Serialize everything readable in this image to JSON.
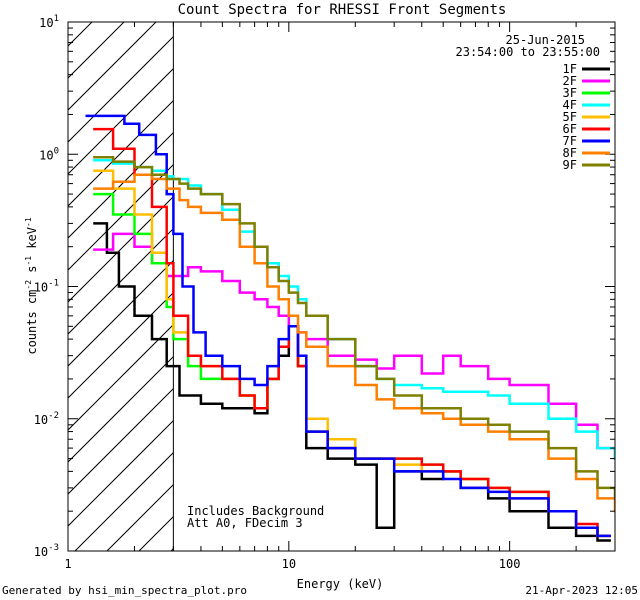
{
  "chart_data": {
    "type": "line",
    "title": "Count Spectra for RHESSI Front Segments",
    "xlabel": "Energy (keV)",
    "ylabel_parts": {
      "base": "counts cm",
      "e1": "-2",
      "s": " s",
      "e2": "-1",
      "kev": " keV",
      "e3": "-1"
    },
    "x_scale": "log",
    "y_scale": "log",
    "xlim": [
      1,
      300
    ],
    "ylim": [
      0.001,
      10
    ],
    "x_ticks": [
      {
        "v": 10,
        "label": "10"
      },
      {
        "v": 100,
        "label": "100"
      }
    ],
    "x_tick_left_label": "1",
    "y_ticks": [
      {
        "v": 0.001,
        "base": "10",
        "exp": "-3"
      },
      {
        "v": 0.01,
        "base": "10",
        "exp": "-2"
      },
      {
        "v": 0.1,
        "base": "10",
        "exp": "-1"
      },
      {
        "v": 1,
        "base": "10",
        "exp": "0"
      },
      {
        "v": 10,
        "base": "10",
        "exp": "1"
      }
    ],
    "attenuator_shade_max_kev": 3,
    "date_line": "25-Jun-2015",
    "time_line": "23:54:00 to 23:55:00",
    "annotation_lines": [
      "Includes Background",
      "Att A0, FDecim 3"
    ],
    "series": [
      {
        "name": "1F",
        "color": "#000000",
        "points": [
          [
            1.3,
            0.3
          ],
          [
            1.5,
            0.18
          ],
          [
            1.7,
            0.1
          ],
          [
            2,
            0.06
          ],
          [
            2.4,
            0.04
          ],
          [
            2.8,
            0.025
          ],
          [
            3.2,
            0.015
          ],
          [
            4,
            0.013
          ],
          [
            5,
            0.012
          ],
          [
            6,
            0.012
          ],
          [
            7,
            0.011
          ],
          [
            8,
            0.02
          ],
          [
            9,
            0.03
          ],
          [
            10,
            0.05
          ],
          [
            11,
            0.025
          ],
          [
            12,
            0.006
          ],
          [
            15,
            0.005
          ],
          [
            20,
            0.0045
          ],
          [
            25,
            0.0015
          ],
          [
            30,
            0.004
          ],
          [
            40,
            0.0035
          ],
          [
            50,
            0.004
          ],
          [
            60,
            0.003
          ],
          [
            80,
            0.0025
          ],
          [
            100,
            0.002
          ],
          [
            150,
            0.0015
          ],
          [
            200,
            0.0013
          ],
          [
            250,
            0.0012
          ]
        ]
      },
      {
        "name": "2F",
        "color": "#ff00ff",
        "points": [
          [
            1.3,
            0.19
          ],
          [
            1.6,
            0.25
          ],
          [
            2,
            0.2
          ],
          [
            2.4,
            0.15
          ],
          [
            2.8,
            0.12
          ],
          [
            3,
            0.12
          ],
          [
            3.5,
            0.14
          ],
          [
            4,
            0.13
          ],
          [
            5,
            0.11
          ],
          [
            6,
            0.09
          ],
          [
            7,
            0.08
          ],
          [
            8,
            0.07
          ],
          [
            9,
            0.06
          ],
          [
            10,
            0.05
          ],
          [
            11,
            0.045
          ],
          [
            12,
            0.04
          ],
          [
            15,
            0.03
          ],
          [
            20,
            0.028
          ],
          [
            25,
            0.024
          ],
          [
            30,
            0.03
          ],
          [
            40,
            0.022
          ],
          [
            50,
            0.03
          ],
          [
            60,
            0.025
          ],
          [
            80,
            0.02
          ],
          [
            100,
            0.018
          ],
          [
            150,
            0.013
          ],
          [
            200,
            0.009
          ],
          [
            250,
            0.006
          ],
          [
            300,
            0.005
          ]
        ]
      },
      {
        "name": "3F",
        "color": "#00ff00",
        "points": [
          [
            1.3,
            0.5
          ],
          [
            1.6,
            0.35
          ],
          [
            2,
            0.25
          ],
          [
            2.4,
            0.15
          ],
          [
            2.8,
            0.07
          ],
          [
            3,
            0.04
          ],
          [
            3.5,
            0.025
          ],
          [
            4,
            0.02
          ],
          [
            5,
            0.02
          ],
          [
            6,
            0.015
          ],
          [
            7,
            0.012
          ],
          [
            8,
            0.02
          ],
          [
            9,
            0.035
          ],
          [
            10,
            0.05
          ],
          [
            11,
            0.025
          ],
          [
            12,
            0.008
          ],
          [
            15,
            0.006
          ],
          [
            20,
            0.005
          ],
          [
            30,
            0.005
          ],
          [
            40,
            0.0045
          ],
          [
            50,
            0.004
          ],
          [
            60,
            0.0035
          ],
          [
            80,
            0.003
          ],
          [
            100,
            0.0028
          ],
          [
            150,
            0.002
          ],
          [
            200,
            0.0015
          ],
          [
            250,
            0.0013
          ]
        ]
      },
      {
        "name": "4F",
        "color": "#00ffff",
        "points": [
          [
            1.3,
            0.9
          ],
          [
            1.6,
            0.85
          ],
          [
            2,
            0.8
          ],
          [
            2.4,
            0.75
          ],
          [
            2.8,
            0.68
          ],
          [
            3,
            0.65
          ],
          [
            3.5,
            0.58
          ],
          [
            4,
            0.5
          ],
          [
            5,
            0.38
          ],
          [
            6,
            0.26
          ],
          [
            7,
            0.2
          ],
          [
            8,
            0.15
          ],
          [
            9,
            0.12
          ],
          [
            10,
            0.1
          ],
          [
            11,
            0.08
          ],
          [
            12,
            0.06
          ],
          [
            15,
            0.04
          ],
          [
            20,
            0.025
          ],
          [
            25,
            0.02
          ],
          [
            30,
            0.018
          ],
          [
            40,
            0.017
          ],
          [
            50,
            0.016
          ],
          [
            60,
            0.016
          ],
          [
            80,
            0.015
          ],
          [
            100,
            0.013
          ],
          [
            150,
            0.01
          ],
          [
            200,
            0.008
          ],
          [
            250,
            0.006
          ],
          [
            300,
            0.005
          ]
        ]
      },
      {
        "name": "5F",
        "color": "#ffbf00",
        "points": [
          [
            1.3,
            0.75
          ],
          [
            1.6,
            0.55
          ],
          [
            2,
            0.35
          ],
          [
            2.4,
            0.18
          ],
          [
            2.8,
            0.08
          ],
          [
            3,
            0.045
          ],
          [
            3.5,
            0.03
          ],
          [
            4,
            0.025
          ],
          [
            5,
            0.02
          ],
          [
            6,
            0.015
          ],
          [
            7,
            0.012
          ],
          [
            8,
            0.02
          ],
          [
            9,
            0.035
          ],
          [
            10,
            0.05
          ],
          [
            11,
            0.03
          ],
          [
            12,
            0.01
          ],
          [
            15,
            0.007
          ],
          [
            20,
            0.005
          ],
          [
            30,
            0.0045
          ],
          [
            40,
            0.004
          ],
          [
            50,
            0.004
          ],
          [
            60,
            0.0035
          ],
          [
            80,
            0.003
          ],
          [
            100,
            0.0025
          ],
          [
            150,
            0.002
          ],
          [
            200,
            0.0015
          ],
          [
            250,
            0.0013
          ]
        ]
      },
      {
        "name": "6F",
        "color": "#ff0000",
        "points": [
          [
            1.3,
            1.55
          ],
          [
            1.6,
            1.1
          ],
          [
            2,
            0.7
          ],
          [
            2.4,
            0.4
          ],
          [
            2.8,
            0.15
          ],
          [
            3,
            0.06
          ],
          [
            3.5,
            0.03
          ],
          [
            4,
            0.025
          ],
          [
            5,
            0.02
          ],
          [
            6,
            0.015
          ],
          [
            7,
            0.012
          ],
          [
            8,
            0.02
          ],
          [
            9,
            0.035
          ],
          [
            10,
            0.05
          ],
          [
            11,
            0.025
          ],
          [
            12,
            0.008
          ],
          [
            15,
            0.006
          ],
          [
            20,
            0.005
          ],
          [
            30,
            0.005
          ],
          [
            40,
            0.0045
          ],
          [
            50,
            0.004
          ],
          [
            60,
            0.0035
          ],
          [
            80,
            0.003
          ],
          [
            100,
            0.0028
          ],
          [
            150,
            0.002
          ],
          [
            200,
            0.0016
          ],
          [
            250,
            0.0013
          ]
        ]
      },
      {
        "name": "7F",
        "color": "#0000ff",
        "points": [
          [
            1.2,
            1.95
          ],
          [
            1.5,
            1.95
          ],
          [
            1.8,
            1.7
          ],
          [
            2.1,
            1.4
          ],
          [
            2.5,
            1.0
          ],
          [
            2.8,
            0.5
          ],
          [
            3,
            0.25
          ],
          [
            3.3,
            0.1
          ],
          [
            3.7,
            0.045
          ],
          [
            4.2,
            0.03
          ],
          [
            5,
            0.025
          ],
          [
            6,
            0.02
          ],
          [
            7,
            0.018
          ],
          [
            8,
            0.025
          ],
          [
            9,
            0.04
          ],
          [
            10,
            0.05
          ],
          [
            11,
            0.03
          ],
          [
            12,
            0.008
          ],
          [
            15,
            0.006
          ],
          [
            20,
            0.005
          ],
          [
            30,
            0.004
          ],
          [
            40,
            0.004
          ],
          [
            50,
            0.0035
          ],
          [
            60,
            0.003
          ],
          [
            80,
            0.0028
          ],
          [
            100,
            0.0025
          ],
          [
            150,
            0.002
          ],
          [
            200,
            0.0015
          ],
          [
            250,
            0.0013
          ]
        ]
      },
      {
        "name": "8F",
        "color": "#ff7f00",
        "points": [
          [
            1.3,
            0.55
          ],
          [
            1.6,
            0.62
          ],
          [
            2,
            0.7
          ],
          [
            2.4,
            0.65
          ],
          [
            2.8,
            0.55
          ],
          [
            3.2,
            0.45
          ],
          [
            3.5,
            0.4
          ],
          [
            4,
            0.36
          ],
          [
            5,
            0.32
          ],
          [
            6,
            0.2
          ],
          [
            7,
            0.15
          ],
          [
            8,
            0.1
          ],
          [
            9,
            0.08
          ],
          [
            10,
            0.06
          ],
          [
            11,
            0.045
          ],
          [
            12,
            0.035
          ],
          [
            15,
            0.025
          ],
          [
            20,
            0.018
          ],
          [
            25,
            0.014
          ],
          [
            30,
            0.012
          ],
          [
            40,
            0.011
          ],
          [
            50,
            0.01
          ],
          [
            60,
            0.009
          ],
          [
            80,
            0.008
          ],
          [
            100,
            0.007
          ],
          [
            150,
            0.005
          ],
          [
            200,
            0.0035
          ],
          [
            250,
            0.0025
          ],
          [
            300,
            0.002
          ]
        ]
      },
      {
        "name": "9F",
        "color": "#7f7f00",
        "points": [
          [
            1.3,
            0.95
          ],
          [
            1.6,
            0.88
          ],
          [
            2,
            0.8
          ],
          [
            2.4,
            0.7
          ],
          [
            2.8,
            0.65
          ],
          [
            3.2,
            0.6
          ],
          [
            3.5,
            0.55
          ],
          [
            4,
            0.5
          ],
          [
            5,
            0.42
          ],
          [
            6,
            0.3
          ],
          [
            7,
            0.2
          ],
          [
            8,
            0.14
          ],
          [
            9,
            0.11
          ],
          [
            10,
            0.09
          ],
          [
            11,
            0.075
          ],
          [
            12,
            0.06
          ],
          [
            15,
            0.04
          ],
          [
            20,
            0.025
          ],
          [
            25,
            0.02
          ],
          [
            30,
            0.015
          ],
          [
            40,
            0.012
          ],
          [
            50,
            0.012
          ],
          [
            60,
            0.01
          ],
          [
            80,
            0.009
          ],
          [
            100,
            0.008
          ],
          [
            150,
            0.006
          ],
          [
            200,
            0.004
          ],
          [
            250,
            0.003
          ],
          [
            300,
            0.0025
          ]
        ]
      }
    ]
  },
  "footer": {
    "generated_by": "Generated by hsi_min_spectra_plot.pro",
    "timestamp": "21-Apr-2023 12:05"
  }
}
